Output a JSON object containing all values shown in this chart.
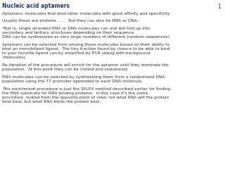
{
  "title": "Nucleic acid aptamers",
  "slide_number": "1",
  "background_color": "#ffffff",
  "title_color": "#1F3864",
  "title_fontsize": 5.5,
  "body_fontsize": 4.2,
  "body_color": "#333333",
  "slide_number_fontsize": 5.5,
  "paragraphs": [
    {
      "text": "Aptamers: molecules that bind other molecules with good affinity and specificity",
      "lines": 1
    },
    {
      "text": "",
      "lines": 0
    },
    {
      "text": "Usually these are proteins . . . . But they can also be RNA or DNA.",
      "lines": 1
    },
    {
      "text": "",
      "lines": 0
    },
    {
      "text": "That is, single stranded RNA or DNA molecules can and will fold up into\nsecondary and tertiary structures depending on their sequence.\nDNA can be synthesized as very large numbers of different (random sequences)",
      "lines": 3
    },
    {
      "text": "",
      "lines": 0
    },
    {
      "text": "Aptamers can be selected from among these molecules based on their ability to\nbind an immobilized ligand.  The tiny fraction found by chance to be able to bind\nto your favorite ligand can by amplified by PCR (along with background\nmolecules).",
      "lines": 4
    },
    {
      "text": "",
      "lines": 0
    },
    {
      "text": "Re-iteration of the procedure will enrich for the aptamer until they dominate the\npopulation.  At this point they can be cloned and sequenced.",
      "lines": 2
    },
    {
      "text": "",
      "lines": 0
    },
    {
      "text": "RNA molecules can be selected by synthesizing them from a randomized DNA\npopulation using the T7 promoter appended to each DNA molecule.",
      "lines": 2
    },
    {
      "text": "",
      "lines": 0
    },
    {
      "text": "This enrichment procedure is just the SELEX method described earlier for finding\nthe RNA substrate for RNA binding proteins.  In this case it's the same\nprocedure, looked from the opposite point of view: not what RNA will the protein\nbind best, but what RNA binds the protein best.",
      "lines": 4
    }
  ]
}
